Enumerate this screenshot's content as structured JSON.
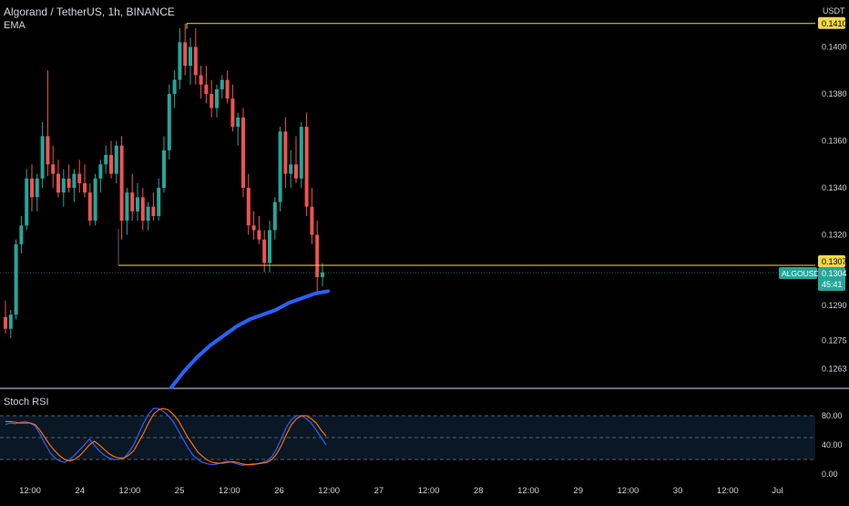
{
  "header": {
    "symbol_title": "Algorand / TetherUS, 1h, BINANCE",
    "ema_label": "EMA",
    "currency": "USDT"
  },
  "price_axis": {
    "ticks": [
      "0.1400",
      "0.1380",
      "0.1360",
      "0.1340",
      "0.1320",
      "0.1290",
      "0.1275",
      "0.1263"
    ],
    "ticks_values": [
      0.14,
      0.138,
      0.136,
      0.134,
      0.132,
      0.129,
      0.1275,
      0.1263
    ],
    "top_line": {
      "label": "0.1410",
      "value": 0.141
    },
    "bottom_line": {
      "label": "0.1307",
      "value": 0.1307
    },
    "symbol_tag": "ALGOUSDT",
    "last_price": "0.1304",
    "countdown": "45:41"
  },
  "time_axis": {
    "labels": [
      "12:00",
      "24",
      "12:00",
      "25",
      "12:00",
      "26",
      "12:00",
      "27",
      "12:00",
      "28",
      "12:00",
      "29",
      "12:00",
      "30",
      "12:00",
      "Jul"
    ]
  },
  "stoch_rsi": {
    "label": "Stoch RSI",
    "ticks": [
      "80.00",
      "40.00",
      "0.00"
    ],
    "ticks_values": [
      80,
      40,
      0
    ],
    "upper_band": 80,
    "lower_band": 20,
    "k": [
      68,
      70,
      69,
      71,
      72,
      70,
      66,
      55,
      42,
      30,
      22,
      18,
      16,
      20,
      26,
      33,
      40,
      48,
      40,
      32,
      26,
      22,
      20,
      20,
      22,
      30,
      40,
      55,
      70,
      82,
      90,
      90,
      86,
      80,
      72,
      60,
      48,
      36,
      26,
      20,
      16,
      14,
      13,
      14,
      16,
      18,
      16,
      14,
      12,
      13,
      14,
      14,
      16,
      18,
      24,
      35,
      50,
      65,
      75,
      80,
      80,
      76,
      70,
      60,
      50,
      40
    ],
    "d": [
      72,
      72,
      71,
      70,
      70,
      70,
      68,
      60,
      50,
      40,
      32,
      25,
      20,
      18,
      20,
      25,
      32,
      40,
      45,
      40,
      34,
      28,
      24,
      22,
      22,
      26,
      32,
      44,
      56,
      70,
      82,
      88,
      90,
      88,
      82,
      74,
      62,
      50,
      40,
      30,
      24,
      19,
      16,
      15,
      15,
      16,
      17,
      16,
      14,
      13,
      13,
      14,
      15,
      16,
      20,
      28,
      40,
      55,
      68,
      76,
      80,
      80,
      76,
      70,
      60,
      52
    ]
  },
  "colors": {
    "up": "#26a69a",
    "down": "#ef5350",
    "ema": "#2962ff",
    "level_line": "#f0d74a",
    "k_line": "#2962ff",
    "d_line": "#ff6d00",
    "background": "#000000",
    "text": "#d1d4dc"
  },
  "chart_data": {
    "type": "candlestick",
    "series": [
      {
        "name": "ALGOUSDT",
        "ohlc": [
          [
            0.1285,
            0.1292,
            0.1278,
            0.128
          ],
          [
            0.128,
            0.1288,
            0.1276,
            0.1286
          ],
          [
            0.1286,
            0.1318,
            0.1284,
            0.1316
          ],
          [
            0.1316,
            0.1328,
            0.1312,
            0.1324
          ],
          [
            0.1324,
            0.1348,
            0.1322,
            0.1344
          ],
          [
            0.1344,
            0.135,
            0.133,
            0.1336
          ],
          [
            0.1336,
            0.1346,
            0.133,
            0.1344
          ],
          [
            0.1344,
            0.1368,
            0.134,
            0.1362
          ],
          [
            0.1362,
            0.139,
            0.1345,
            0.135
          ],
          [
            0.135,
            0.1358,
            0.134,
            0.1346
          ],
          [
            0.1346,
            0.1352,
            0.1336,
            0.1338
          ],
          [
            0.1338,
            0.1348,
            0.1332,
            0.1344
          ],
          [
            0.1344,
            0.135,
            0.1338,
            0.134
          ],
          [
            0.134,
            0.1348,
            0.1334,
            0.1346
          ],
          [
            0.1346,
            0.1352,
            0.1338,
            0.1342
          ],
          [
            0.1342,
            0.135,
            0.1336,
            0.1338
          ],
          [
            0.1338,
            0.1342,
            0.1324,
            0.1326
          ],
          [
            0.1326,
            0.1346,
            0.1324,
            0.1344
          ],
          [
            0.1344,
            0.1352,
            0.1338,
            0.135
          ],
          [
            0.135,
            0.1358,
            0.1346,
            0.1354
          ],
          [
            0.1354,
            0.136,
            0.1344,
            0.1346
          ],
          [
            0.1346,
            0.136,
            0.1342,
            0.1358
          ],
          [
            0.1358,
            0.1362,
            0.1318,
            0.1326
          ],
          [
            0.1326,
            0.134,
            0.132,
            0.1338
          ],
          [
            0.1338,
            0.1346,
            0.1326,
            0.133
          ],
          [
            0.133,
            0.1342,
            0.1326,
            0.1336
          ],
          [
            0.1336,
            0.134,
            0.1322,
            0.1326
          ],
          [
            0.1326,
            0.1334,
            0.1322,
            0.1332
          ],
          [
            0.1332,
            0.1338,
            0.1326,
            0.1328
          ],
          [
            0.1328,
            0.1344,
            0.1326,
            0.134
          ],
          [
            0.134,
            0.1362,
            0.1338,
            0.1356
          ],
          [
            0.1356,
            0.1384,
            0.1352,
            0.138
          ],
          [
            0.138,
            0.139,
            0.1374,
            0.1386
          ],
          [
            0.1386,
            0.1408,
            0.1382,
            0.1402
          ],
          [
            0.1402,
            0.141,
            0.1388,
            0.1392
          ],
          [
            0.1392,
            0.1404,
            0.1384,
            0.14
          ],
          [
            0.14,
            0.1408,
            0.1384,
            0.1388
          ],
          [
            0.1388,
            0.1392,
            0.1378,
            0.1384
          ],
          [
            0.1384,
            0.1392,
            0.1376,
            0.138
          ],
          [
            0.138,
            0.1386,
            0.137,
            0.1374
          ],
          [
            0.1374,
            0.1384,
            0.137,
            0.1382
          ],
          [
            0.1382,
            0.1388,
            0.1378,
            0.1386
          ],
          [
            0.1386,
            0.139,
            0.1376,
            0.1378
          ],
          [
            0.1378,
            0.1384,
            0.1364,
            0.1366
          ],
          [
            0.1366,
            0.1372,
            0.1358,
            0.137
          ],
          [
            0.137,
            0.1374,
            0.1336,
            0.134
          ],
          [
            0.134,
            0.1346,
            0.132,
            0.1324
          ],
          [
            0.1324,
            0.133,
            0.1318,
            0.1322
          ],
          [
            0.1322,
            0.1328,
            0.1316,
            0.1318
          ],
          [
            0.1318,
            0.1322,
            0.1304,
            0.1308
          ],
          [
            0.1308,
            0.1326,
            0.1304,
            0.1322
          ],
          [
            0.1322,
            0.1336,
            0.1318,
            0.1334
          ],
          [
            0.1334,
            0.1366,
            0.133,
            0.1364
          ],
          [
            0.1364,
            0.137,
            0.134,
            0.1346
          ],
          [
            0.1346,
            0.1356,
            0.134,
            0.135
          ],
          [
            0.135,
            0.1362,
            0.1342,
            0.1344
          ],
          [
            0.1344,
            0.1368,
            0.134,
            0.1366
          ],
          [
            0.1366,
            0.1372,
            0.1328,
            0.1332
          ],
          [
            0.1332,
            0.134,
            0.1316,
            0.132
          ],
          [
            0.132,
            0.1326,
            0.1296,
            0.1302
          ],
          [
            0.1302,
            0.1308,
            0.1298,
            0.1304
          ]
        ]
      },
      {
        "name": "EMA",
        "values": [
          0.1255,
          0.1262,
          0.1268,
          0.1273,
          0.1277,
          0.1281,
          0.1284,
          0.1286,
          0.1288,
          0.1291,
          0.1293,
          0.1295,
          0.1296
        ]
      }
    ],
    "ylim": [
      0.1255,
      0.142
    ],
    "xlabel": "",
    "ylabel": "",
    "grid": false
  }
}
